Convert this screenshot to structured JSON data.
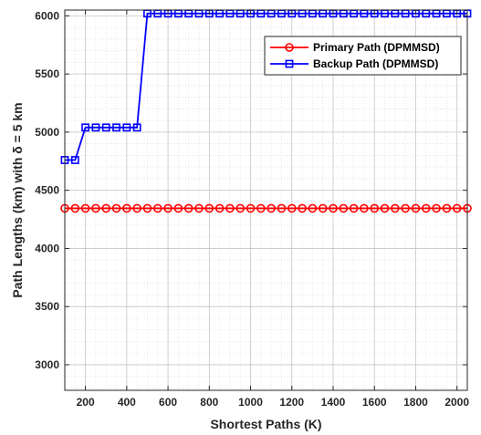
{
  "chart_data": {
    "type": "line",
    "xlabel": "Shortest Paths (K)",
    "ylabel": "Path Lengths (km) with δ = 5 km",
    "xlim": [
      100,
      2050
    ],
    "ylim": [
      2780,
      6050
    ],
    "xticks": [
      200,
      400,
      600,
      800,
      1000,
      1200,
      1400,
      1600,
      1800,
      2000
    ],
    "yticks": [
      3000,
      3500,
      4000,
      4500,
      5000,
      5500,
      6000
    ],
    "grid": true,
    "minor_grid": true,
    "legend_position": "top-right",
    "x": [
      100,
      150,
      200,
      250,
      300,
      350,
      400,
      450,
      500,
      550,
      600,
      650,
      700,
      750,
      800,
      850,
      900,
      950,
      1000,
      1050,
      1100,
      1150,
      1200,
      1250,
      1300,
      1350,
      1400,
      1450,
      1500,
      1550,
      1600,
      1650,
      1700,
      1750,
      1800,
      1850,
      1900,
      1950,
      2000,
      2050
    ],
    "series": [
      {
        "name": "Primary Path (DPMMSD)",
        "color": "#ff0000",
        "marker": "circle",
        "values": [
          4345,
          4345,
          4345,
          4345,
          4345,
          4345,
          4345,
          4345,
          4345,
          4345,
          4345,
          4345,
          4345,
          4345,
          4345,
          4345,
          4345,
          4345,
          4345,
          4345,
          4345,
          4345,
          4345,
          4345,
          4345,
          4345,
          4345,
          4345,
          4345,
          4345,
          4345,
          4345,
          4345,
          4345,
          4345,
          4345,
          4345,
          4345,
          4345,
          4345
        ]
      },
      {
        "name": "Backup Path (DPMMSD)",
        "color": "#0000ff",
        "marker": "square",
        "values": [
          4760,
          4760,
          5040,
          5040,
          5040,
          5040,
          5040,
          5040,
          6020,
          6020,
          6020,
          6020,
          6020,
          6020,
          6020,
          6020,
          6020,
          6020,
          6020,
          6020,
          6020,
          6020,
          6020,
          6020,
          6020,
          6020,
          6020,
          6020,
          6020,
          6020,
          6020,
          6020,
          6020,
          6020,
          6020,
          6020,
          6020,
          6020,
          6020,
          6020
        ]
      }
    ]
  }
}
